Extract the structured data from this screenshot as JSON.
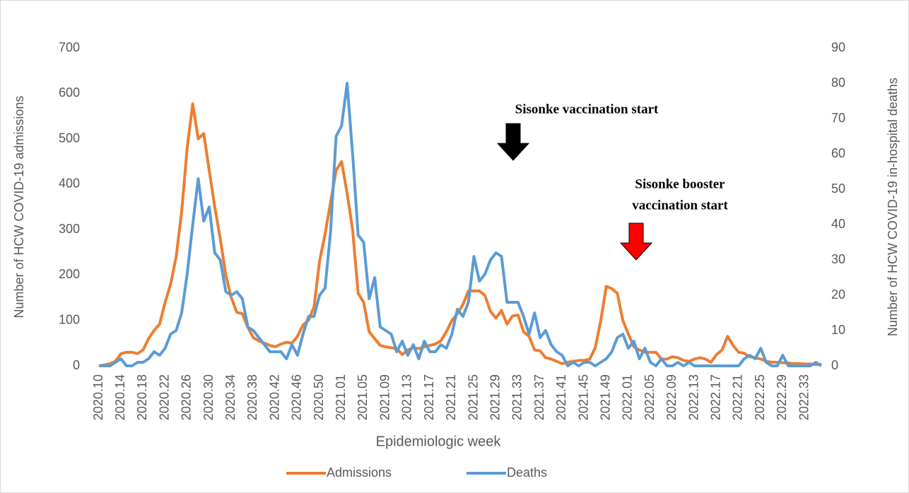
{
  "chart_data": {
    "type": "line",
    "x_label": "Epidemiologic week",
    "y_label": "Number of HCW COVID-19 admissions",
    "y2_label": "Number of HCW COVID-19 in-hospital deaths",
    "categories": [
      "2020.10",
      null,
      null,
      null,
      "2020.14",
      null,
      null,
      null,
      "2020.18",
      null,
      null,
      null,
      "2020.22",
      null,
      null,
      null,
      "2020.26",
      null,
      null,
      null,
      "2020.30",
      null,
      null,
      null,
      "2020.34",
      null,
      null,
      null,
      "2020.38",
      null,
      null,
      null,
      "2020.42",
      null,
      null,
      null,
      "2020.46",
      null,
      null,
      null,
      "2020.50",
      null,
      null,
      null,
      "2021.01",
      null,
      null,
      null,
      "2021.05",
      null,
      null,
      null,
      "2021.09",
      null,
      null,
      null,
      "2021.13",
      null,
      null,
      null,
      "2021.17",
      null,
      null,
      null,
      "2021.21",
      null,
      null,
      null,
      "2021.25",
      null,
      null,
      null,
      "2021.29",
      null,
      null,
      null,
      "2021.33",
      null,
      null,
      null,
      "2021.37",
      null,
      null,
      null,
      "2021.41",
      null,
      null,
      null,
      "2021.45",
      null,
      null,
      null,
      "2021.49",
      null,
      null,
      null,
      "2022.01",
      null,
      null,
      null,
      "2022.05",
      null,
      null,
      null,
      "2022.09",
      null,
      null,
      null,
      "2022.13",
      null,
      null,
      null,
      "2022.17",
      null,
      null,
      null,
      "2022.21",
      null,
      null,
      null,
      "2022.25",
      null,
      null,
      null,
      "2022.29",
      null,
      null,
      null,
      "2022.33",
      null,
      null,
      null
    ],
    "series": [
      {
        "name": "Admissions",
        "color": "#ed7d31",
        "axis": "y",
        "values": [
          0,
          2,
          5,
          10,
          27,
          30,
          30,
          27,
          35,
          60,
          78,
          92,
          140,
          180,
          240,
          340,
          480,
          577,
          500,
          512,
          430,
          350,
          280,
          200,
          150,
          118,
          115,
          85,
          62,
          55,
          50,
          45,
          42,
          48,
          52,
          50,
          65,
          90,
          100,
          130,
          230,
          290,
          360,
          430,
          450,
          380,
          300,
          160,
          140,
          75,
          60,
          45,
          42,
          40,
          38,
          25,
          35,
          40,
          38,
          42,
          45,
          48,
          55,
          75,
          100,
          115,
          135,
          165,
          165,
          165,
          155,
          120,
          105,
          122,
          92,
          110,
          112,
          75,
          65,
          35,
          33,
          18,
          15,
          10,
          5,
          8,
          10,
          12,
          12,
          15,
          40,
          100,
          175,
          170,
          160,
          100,
          70,
          42,
          35,
          30,
          30,
          30,
          15,
          15,
          20,
          18,
          12,
          10,
          15,
          18,
          15,
          8,
          25,
          35,
          65,
          45,
          30,
          28,
          20,
          18,
          15,
          10,
          8,
          8,
          7,
          6,
          5,
          5,
          4,
          4,
          3,
          3
        ]
      },
      {
        "name": "Deaths",
        "color": "#5b9bd5",
        "axis": "y2",
        "values": [
          0,
          0,
          0,
          1,
          2,
          0,
          0,
          1,
          1,
          2,
          4,
          3,
          5,
          9,
          10,
          15,
          26,
          40,
          53,
          41,
          45,
          32,
          30,
          21,
          20,
          21,
          19,
          11,
          10,
          8,
          6,
          4,
          4,
          4,
          2,
          6,
          3,
          9,
          14,
          14,
          20,
          22,
          38,
          65,
          68,
          80,
          60,
          37,
          35,
          19,
          25,
          11,
          10,
          9,
          4,
          7,
          3,
          6,
          2,
          7,
          4,
          4,
          6,
          5,
          9,
          16,
          14,
          18,
          31,
          24,
          26,
          30,
          32,
          31,
          18,
          18,
          18,
          14,
          9,
          15,
          8,
          10,
          6,
          4,
          3,
          0,
          1,
          0,
          1,
          1,
          0,
          1,
          2,
          4,
          8,
          9,
          5,
          7,
          2,
          5,
          1,
          0,
          2,
          0,
          0,
          1,
          0,
          1,
          0,
          0,
          0,
          0,
          0,
          0,
          0,
          0,
          0,
          2,
          3,
          2,
          5,
          1,
          0,
          0,
          3,
          0,
          0,
          0,
          0,
          0,
          1,
          0
        ]
      }
    ],
    "ylim": [
      0,
      700
    ],
    "yticks": [
      0,
      100,
      200,
      300,
      400,
      500,
      600,
      700
    ],
    "y2lim": [
      0,
      90
    ],
    "y2ticks": [
      0,
      10,
      20,
      30,
      40,
      50,
      60,
      70,
      80,
      90
    ],
    "grid": false,
    "annotations": [
      {
        "lines": [
          "Sisonke vaccination start"
        ],
        "arrow_color": "#000000"
      },
      {
        "lines": [
          "Sisonke booster",
          "vaccination start"
        ],
        "arrow_color": "#ff0000"
      }
    ]
  }
}
